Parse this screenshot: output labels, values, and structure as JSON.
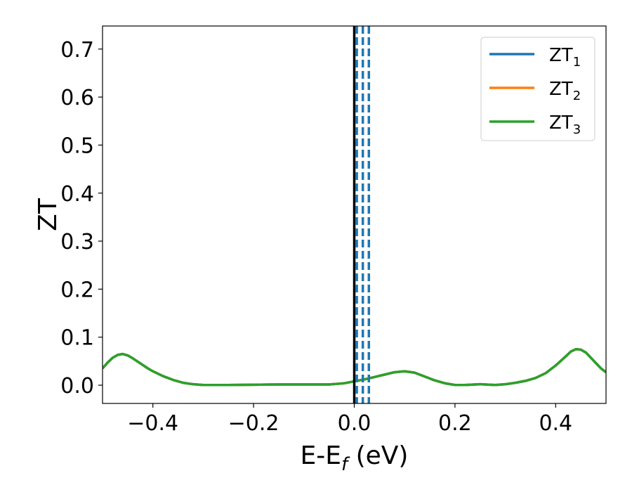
{
  "chart_data": {
    "type": "line",
    "xlabel": "E-E",
    "xlabel_sub": "f",
    "xlabel_unit": "(eV)",
    "ylabel": "ZT",
    "xlim": [
      -0.5,
      0.5
    ],
    "ylim": [
      -0.038,
      0.748
    ],
    "xticks": [
      -0.4,
      -0.2,
      0.0,
      0.2,
      0.4
    ],
    "xtick_labels": [
      "−0.4",
      "−0.2",
      "0.0",
      "0.2",
      "0.4"
    ],
    "yticks": [
      0.0,
      0.1,
      0.2,
      0.3,
      0.4,
      0.5,
      0.6,
      0.7
    ],
    "ytick_labels": [
      "0.0",
      "0.1",
      "0.2",
      "0.3",
      "0.4",
      "0.5",
      "0.6",
      "0.7"
    ],
    "grid": false,
    "legend_position": "top-right",
    "x": [
      -0.5,
      -0.49,
      -0.48,
      -0.47,
      -0.46,
      -0.45,
      -0.44,
      -0.43,
      -0.42,
      -0.41,
      -0.4,
      -0.38,
      -0.36,
      -0.34,
      -0.32,
      -0.3,
      -0.25,
      -0.2,
      -0.15,
      -0.1,
      -0.05,
      -0.02,
      0.0,
      0.02,
      0.04,
      0.06,
      0.08,
      0.1,
      0.12,
      0.14,
      0.16,
      0.18,
      0.2,
      0.22,
      0.25,
      0.28,
      0.3,
      0.32,
      0.34,
      0.36,
      0.38,
      0.4,
      0.42,
      0.43,
      0.44,
      0.45,
      0.46,
      0.47,
      0.48,
      0.49,
      0.5
    ],
    "series": [
      {
        "name": "ZT",
        "name_sub": "1",
        "color": "#1f77b4",
        "y": [
          0.035,
          0.047,
          0.057,
          0.063,
          0.065,
          0.062,
          0.056,
          0.049,
          0.042,
          0.035,
          0.029,
          0.019,
          0.011,
          0.005,
          0.002,
          0.0005,
          0.0005,
          0.001,
          0.0015,
          0.0015,
          0.0015,
          0.004,
          0.008,
          0.012,
          0.017,
          0.022,
          0.027,
          0.029,
          0.026,
          0.018,
          0.01,
          0.004,
          0.0005,
          0.0005,
          0.002,
          0.0005,
          0.002,
          0.005,
          0.009,
          0.015,
          0.025,
          0.041,
          0.06,
          0.07,
          0.075,
          0.074,
          0.068,
          0.057,
          0.046,
          0.035,
          0.027
        ]
      },
      {
        "name": "ZT",
        "name_sub": "2",
        "color": "#ff7f0e",
        "y": [
          0.035,
          0.047,
          0.057,
          0.063,
          0.065,
          0.062,
          0.056,
          0.049,
          0.042,
          0.035,
          0.029,
          0.019,
          0.011,
          0.005,
          0.002,
          0.0005,
          0.0005,
          0.001,
          0.0015,
          0.0015,
          0.0015,
          0.004,
          0.008,
          0.012,
          0.017,
          0.022,
          0.027,
          0.029,
          0.026,
          0.018,
          0.01,
          0.004,
          0.0005,
          0.0005,
          0.002,
          0.0005,
          0.002,
          0.005,
          0.009,
          0.015,
          0.025,
          0.041,
          0.06,
          0.07,
          0.075,
          0.074,
          0.068,
          0.057,
          0.046,
          0.035,
          0.027
        ]
      },
      {
        "name": "ZT",
        "name_sub": "3",
        "color": "#2ca02c",
        "y": [
          0.035,
          0.047,
          0.057,
          0.063,
          0.065,
          0.062,
          0.056,
          0.049,
          0.042,
          0.035,
          0.029,
          0.019,
          0.011,
          0.005,
          0.002,
          0.0005,
          0.0005,
          0.001,
          0.0015,
          0.0015,
          0.0015,
          0.004,
          0.008,
          0.012,
          0.017,
          0.022,
          0.027,
          0.029,
          0.026,
          0.018,
          0.01,
          0.004,
          0.0005,
          0.0005,
          0.002,
          0.0005,
          0.002,
          0.005,
          0.009,
          0.015,
          0.025,
          0.041,
          0.06,
          0.07,
          0.075,
          0.074,
          0.068,
          0.057,
          0.046,
          0.035,
          0.027
        ]
      }
    ],
    "vlines": [
      {
        "x": 0.0,
        "color": "#000000",
        "style": "solid"
      },
      {
        "x": 0.005,
        "color": "#1f77b4",
        "style": "dashed"
      },
      {
        "x": 0.017,
        "color": "#1f77b4",
        "style": "dashed"
      },
      {
        "x": 0.029,
        "color": "#1f77b4",
        "style": "dashed"
      }
    ]
  }
}
